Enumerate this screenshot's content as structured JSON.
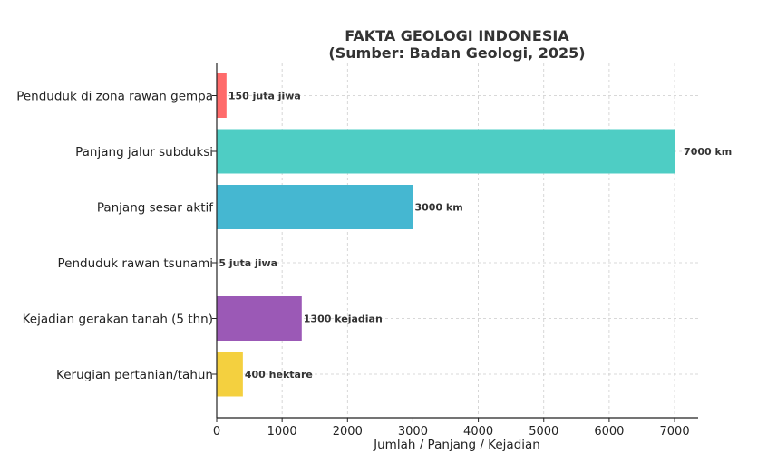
{
  "chart_data": {
    "type": "bar",
    "orientation": "horizontal",
    "title": "FAKTA GEOLOGI INDONESIA",
    "subtitle": "(Sumber: Badan Geologi, 2025)",
    "xlabel": "Jumlah / Panjang / Kejadian",
    "ylabel": "",
    "xlim": [
      0,
      7350
    ],
    "xticks": [
      0,
      1000,
      2000,
      3000,
      4000,
      5000,
      6000,
      7000
    ],
    "grid": true,
    "categories": [
      "Penduduk di zona rawan gempa",
      "Panjang jalur subduksi",
      "Panjang sesar aktif",
      "Penduduk rawan tsunami",
      "Kejadian gerakan tanah (5 thn)",
      "Kerugian pertanian/tahun"
    ],
    "values": [
      150,
      7000,
      3000,
      5,
      1300,
      400
    ],
    "data_labels": [
      "150 juta jiwa",
      "7000 km",
      "3000 km",
      "5 juta jiwa",
      "1300 kejadian",
      "400 hektare"
    ],
    "colors": [
      "#ff6b6b",
      "#4ecdc4",
      "#45b7d1",
      "#96ceb4",
      "#9b59b6",
      "#f4d03f"
    ]
  }
}
